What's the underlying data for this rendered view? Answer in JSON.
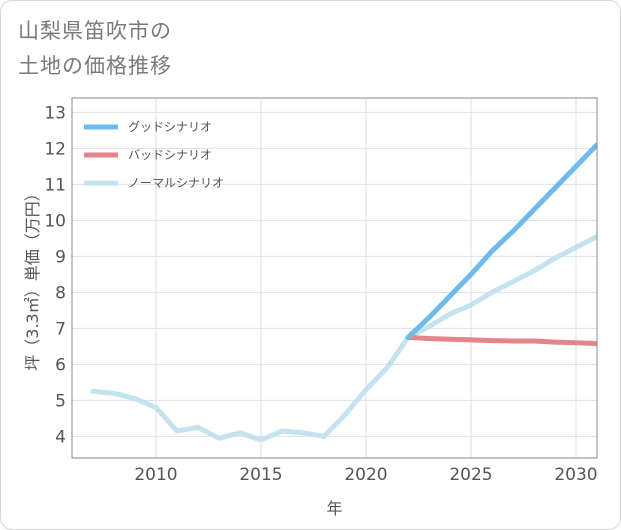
{
  "title": {
    "line1": "山梨県笛吹市の",
    "line2": "土地の価格推移"
  },
  "chart_data": {
    "type": "line",
    "title": "山梨県笛吹市の土地の価格推移",
    "xlabel": "年",
    "ylabel": "坪（3.3㎡）単価（万円）",
    "xlim": [
      2006,
      2031
    ],
    "ylim": [
      3.4,
      13.4
    ],
    "xticks": [
      2010,
      2015,
      2020,
      2025,
      2030
    ],
    "yticks": [
      4,
      5,
      6,
      7,
      8,
      9,
      10,
      11,
      12,
      13
    ],
    "grid": true,
    "legend_position": "top-left",
    "series": [
      {
        "name": "ノーマルシナリオ",
        "color": "#c5e2ef",
        "x": [
          2007,
          2008,
          2009,
          2010,
          2011,
          2012,
          2013,
          2014,
          2015,
          2016,
          2017,
          2018,
          2019,
          2020,
          2021,
          2022,
          2023,
          2024,
          2025,
          2026,
          2027,
          2028,
          2029,
          2030,
          2031
        ],
        "values": [
          5.25,
          5.2,
          5.05,
          4.8,
          4.15,
          4.25,
          3.95,
          4.1,
          3.9,
          4.15,
          4.1,
          4.0,
          4.6,
          5.3,
          5.9,
          6.75,
          7.05,
          7.4,
          7.65,
          8.0,
          8.3,
          8.6,
          8.95,
          9.25,
          9.55
        ]
      },
      {
        "name": "バッドシナリオ",
        "color": "#e4848c",
        "x": [
          2022,
          2023,
          2024,
          2025,
          2026,
          2027,
          2028,
          2029,
          2030,
          2031
        ],
        "values": [
          6.75,
          6.72,
          6.7,
          6.68,
          6.66,
          6.65,
          6.65,
          6.62,
          6.6,
          6.58
        ]
      },
      {
        "name": "グッドシナリオ",
        "color": "#6cbbec",
        "x": [
          2022,
          2023,
          2024,
          2025,
          2026,
          2027,
          2028,
          2029,
          2030,
          2031
        ],
        "values": [
          6.75,
          7.3,
          7.9,
          8.5,
          9.15,
          9.7,
          10.3,
          10.9,
          11.5,
          12.1
        ]
      }
    ],
    "legend": [
      {
        "name": "グッドシナリオ",
        "color": "#6cbbec"
      },
      {
        "name": "バッドシナリオ",
        "color": "#e4848c"
      },
      {
        "name": "ノーマルシナリオ",
        "color": "#c5e2ef"
      }
    ]
  }
}
